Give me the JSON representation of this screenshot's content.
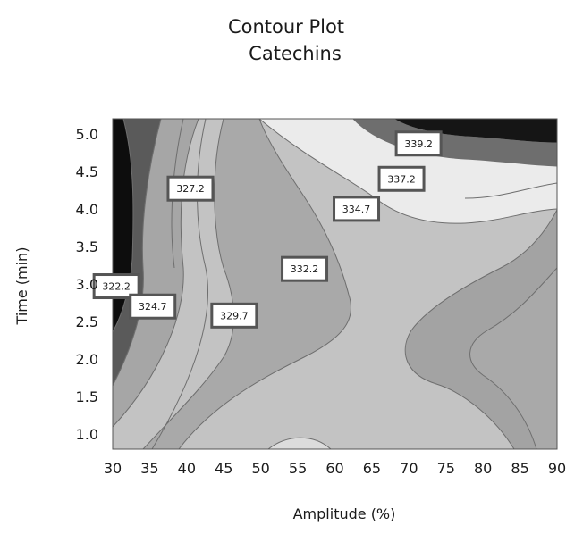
{
  "chart_data": {
    "type": "contour",
    "title_lines": [
      "Contour Plot",
      "Catechins"
    ],
    "xlabel": "Amplitude (%)",
    "ylabel": "Time (min)",
    "xlim": [
      30,
      90
    ],
    "ylim": [
      0.8,
      5.2
    ],
    "x_ticks": [
      "30",
      "35",
      "40",
      "45",
      "50",
      "55",
      "60",
      "65",
      "70",
      "75",
      "80",
      "85",
      "90"
    ],
    "y_ticks": [
      "1.0",
      "1.5",
      "2.0",
      "2.5",
      "3.0",
      "3.5",
      "4.0",
      "4.5",
      "5.0"
    ],
    "contour_levels": [
      "322.2",
      "324.7",
      "327.2",
      "329.7",
      "332.2",
      "334.7",
      "337.2",
      "339.2"
    ],
    "labels": [
      {
        "text": "322.2",
        "x": 30.5,
        "y": 2.97
      },
      {
        "text": "324.7",
        "x": 35.4,
        "y": 2.7
      },
      {
        "text": "327.2",
        "x": 40.5,
        "y": 4.27
      },
      {
        "text": "329.7",
        "x": 46.4,
        "y": 2.58
      },
      {
        "text": "332.2",
        "x": 55.9,
        "y": 3.2
      },
      {
        "text": "334.7",
        "x": 62.9,
        "y": 4.0
      },
      {
        "text": "337.2",
        "x": 69.0,
        "y": 4.4
      },
      {
        "text": "339.2",
        "x": 71.3,
        "y": 4.87
      }
    ]
  }
}
